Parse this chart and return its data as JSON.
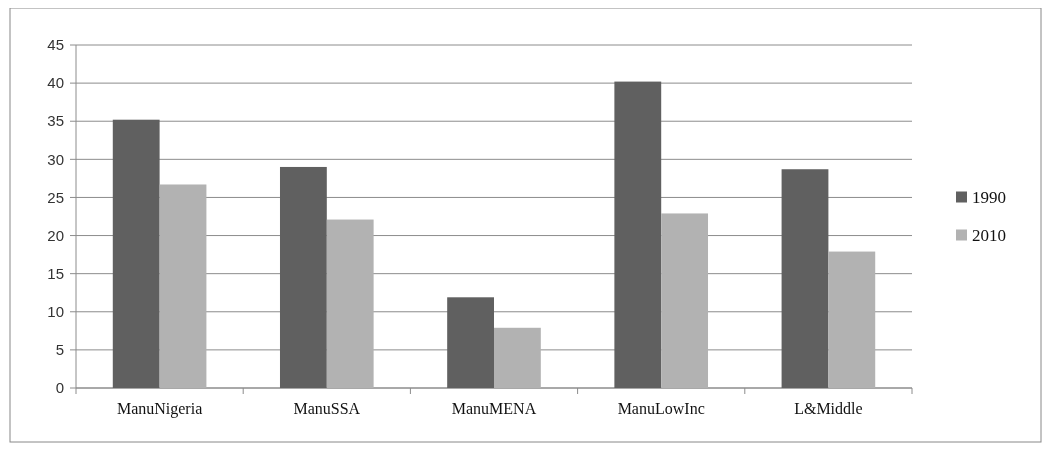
{
  "chart_data": {
    "type": "bar",
    "categories": [
      "ManuNigeria",
      "ManuSSA",
      "ManuMENA",
      "ManuLowInc",
      "L&Middle"
    ],
    "series": [
      {
        "name": "1990",
        "color": "#606060",
        "values": [
          35.2,
          29.0,
          11.9,
          40.2,
          28.7
        ]
      },
      {
        "name": "2010",
        "color": "#b2b2b2",
        "values": [
          26.7,
          22.1,
          7.9,
          22.9,
          17.9
        ]
      }
    ],
    "ylim": [
      0,
      45
    ],
    "yticks": [
      0,
      5,
      10,
      15,
      20,
      25,
      30,
      35,
      40,
      45
    ],
    "grid": "y",
    "legend": "right"
  }
}
